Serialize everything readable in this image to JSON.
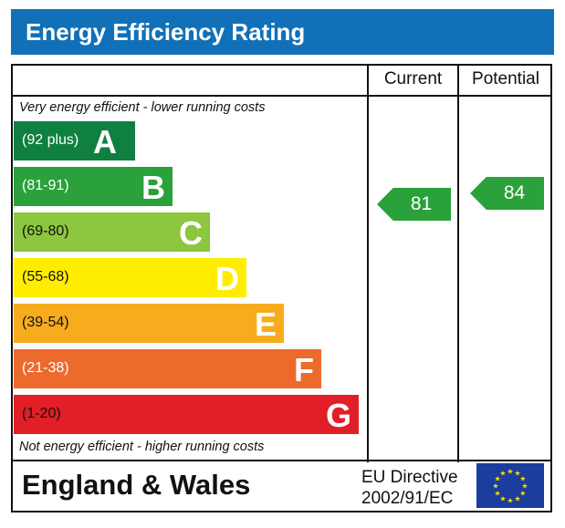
{
  "title": "Energy Efficiency Rating",
  "columns": {
    "current": "Current",
    "potential": "Potential"
  },
  "top_note": "Very energy efficient - lower running costs",
  "bottom_note": "Not energy efficient - higher running costs",
  "chart_data": {
    "type": "bar",
    "bands": [
      {
        "range": "(92 plus)",
        "letter": "A",
        "color": "#0f8040"
      },
      {
        "range": "(81-91)",
        "letter": "B",
        "color": "#2aa13a"
      },
      {
        "range": "(69-80)",
        "letter": "C",
        "color": "#8dc63f"
      },
      {
        "range": "(55-68)",
        "letter": "D",
        "color": "#ffed00"
      },
      {
        "range": "(39-54)",
        "letter": "E",
        "color": "#f7ac1e"
      },
      {
        "range": "(21-38)",
        "letter": "F",
        "color": "#ec6a2c"
      },
      {
        "range": "(1-20)",
        "letter": "G",
        "color": "#e21e26"
      }
    ],
    "current": {
      "value": "81",
      "band": "B",
      "color": "#2aa13a"
    },
    "potential": {
      "value": "84",
      "band": "B",
      "color": "#2aa13a"
    }
  },
  "footer": {
    "region": "England & Wales",
    "directive_line1": "EU Directive",
    "directive_line2": "2002/91/EC",
    "flag": "eu-flag-icon"
  }
}
